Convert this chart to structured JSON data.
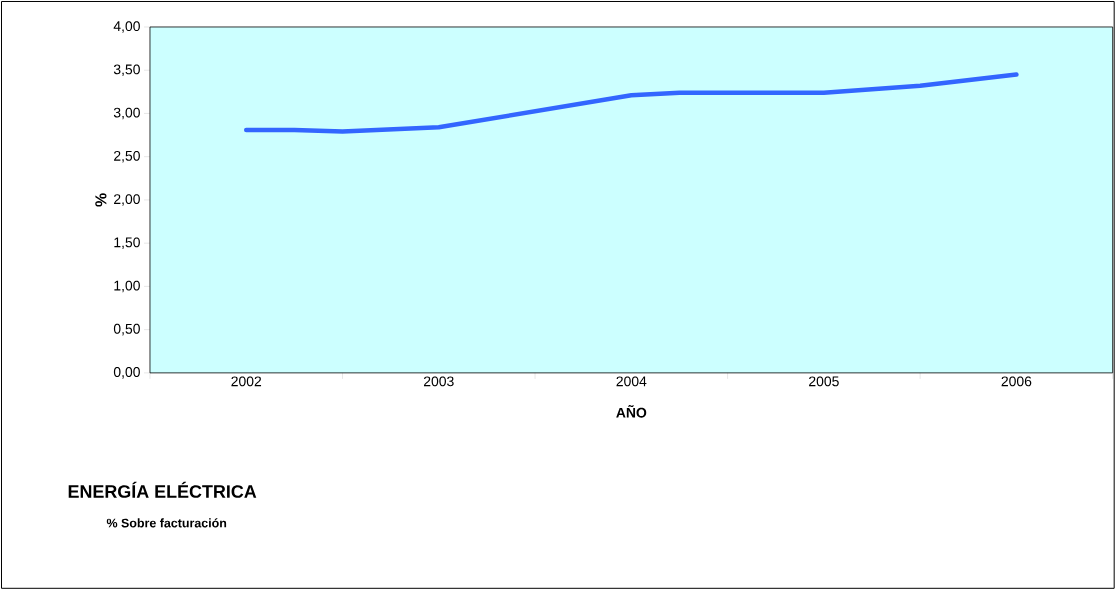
{
  "chart_data": {
    "type": "line",
    "title": "ENERGÍA ELÉCTRICA",
    "subtitle": "% Sobre facturación",
    "xlabel": "AÑO",
    "ylabel": "%",
    "x": [
      2002,
      2002.25,
      2002.5,
      2003,
      2004,
      2004.25,
      2005,
      2005.5,
      2006
    ],
    "values": [
      2.81,
      2.81,
      2.79,
      2.84,
      3.21,
      3.24,
      3.24,
      3.32,
      3.45
    ],
    "color": "#3366ff",
    "xlim": [
      2001.5,
      2006.5
    ],
    "xticks": [
      {
        "value": 2001.5,
        "label": null
      },
      {
        "value": 2002,
        "label": "2002"
      },
      {
        "value": 2002.5,
        "label": null
      },
      {
        "value": 2003,
        "label": "2003"
      },
      {
        "value": 2003.5,
        "label": null
      },
      {
        "value": 2004,
        "label": "2004"
      },
      {
        "value": 2004.5,
        "label": null
      },
      {
        "value": 2005,
        "label": "2005"
      },
      {
        "value": 2005.5,
        "label": null
      },
      {
        "value": 2006,
        "label": "2006"
      },
      {
        "value": 2006.5,
        "label": null
      }
    ],
    "ylim": [
      0,
      4
    ],
    "yticks": [
      {
        "value": 0,
        "label": "0,00"
      },
      {
        "value": 0.5,
        "label": "0,50"
      },
      {
        "value": 1,
        "label": "1,00"
      },
      {
        "value": 1.5,
        "label": "1,50"
      },
      {
        "value": 2,
        "label": "2,00"
      },
      {
        "value": 2.5,
        "label": "2,50"
      },
      {
        "value": 3,
        "label": "3,00"
      },
      {
        "value": 3.5,
        "label": "3,50"
      },
      {
        "value": 4,
        "label": "4,00"
      }
    ]
  }
}
